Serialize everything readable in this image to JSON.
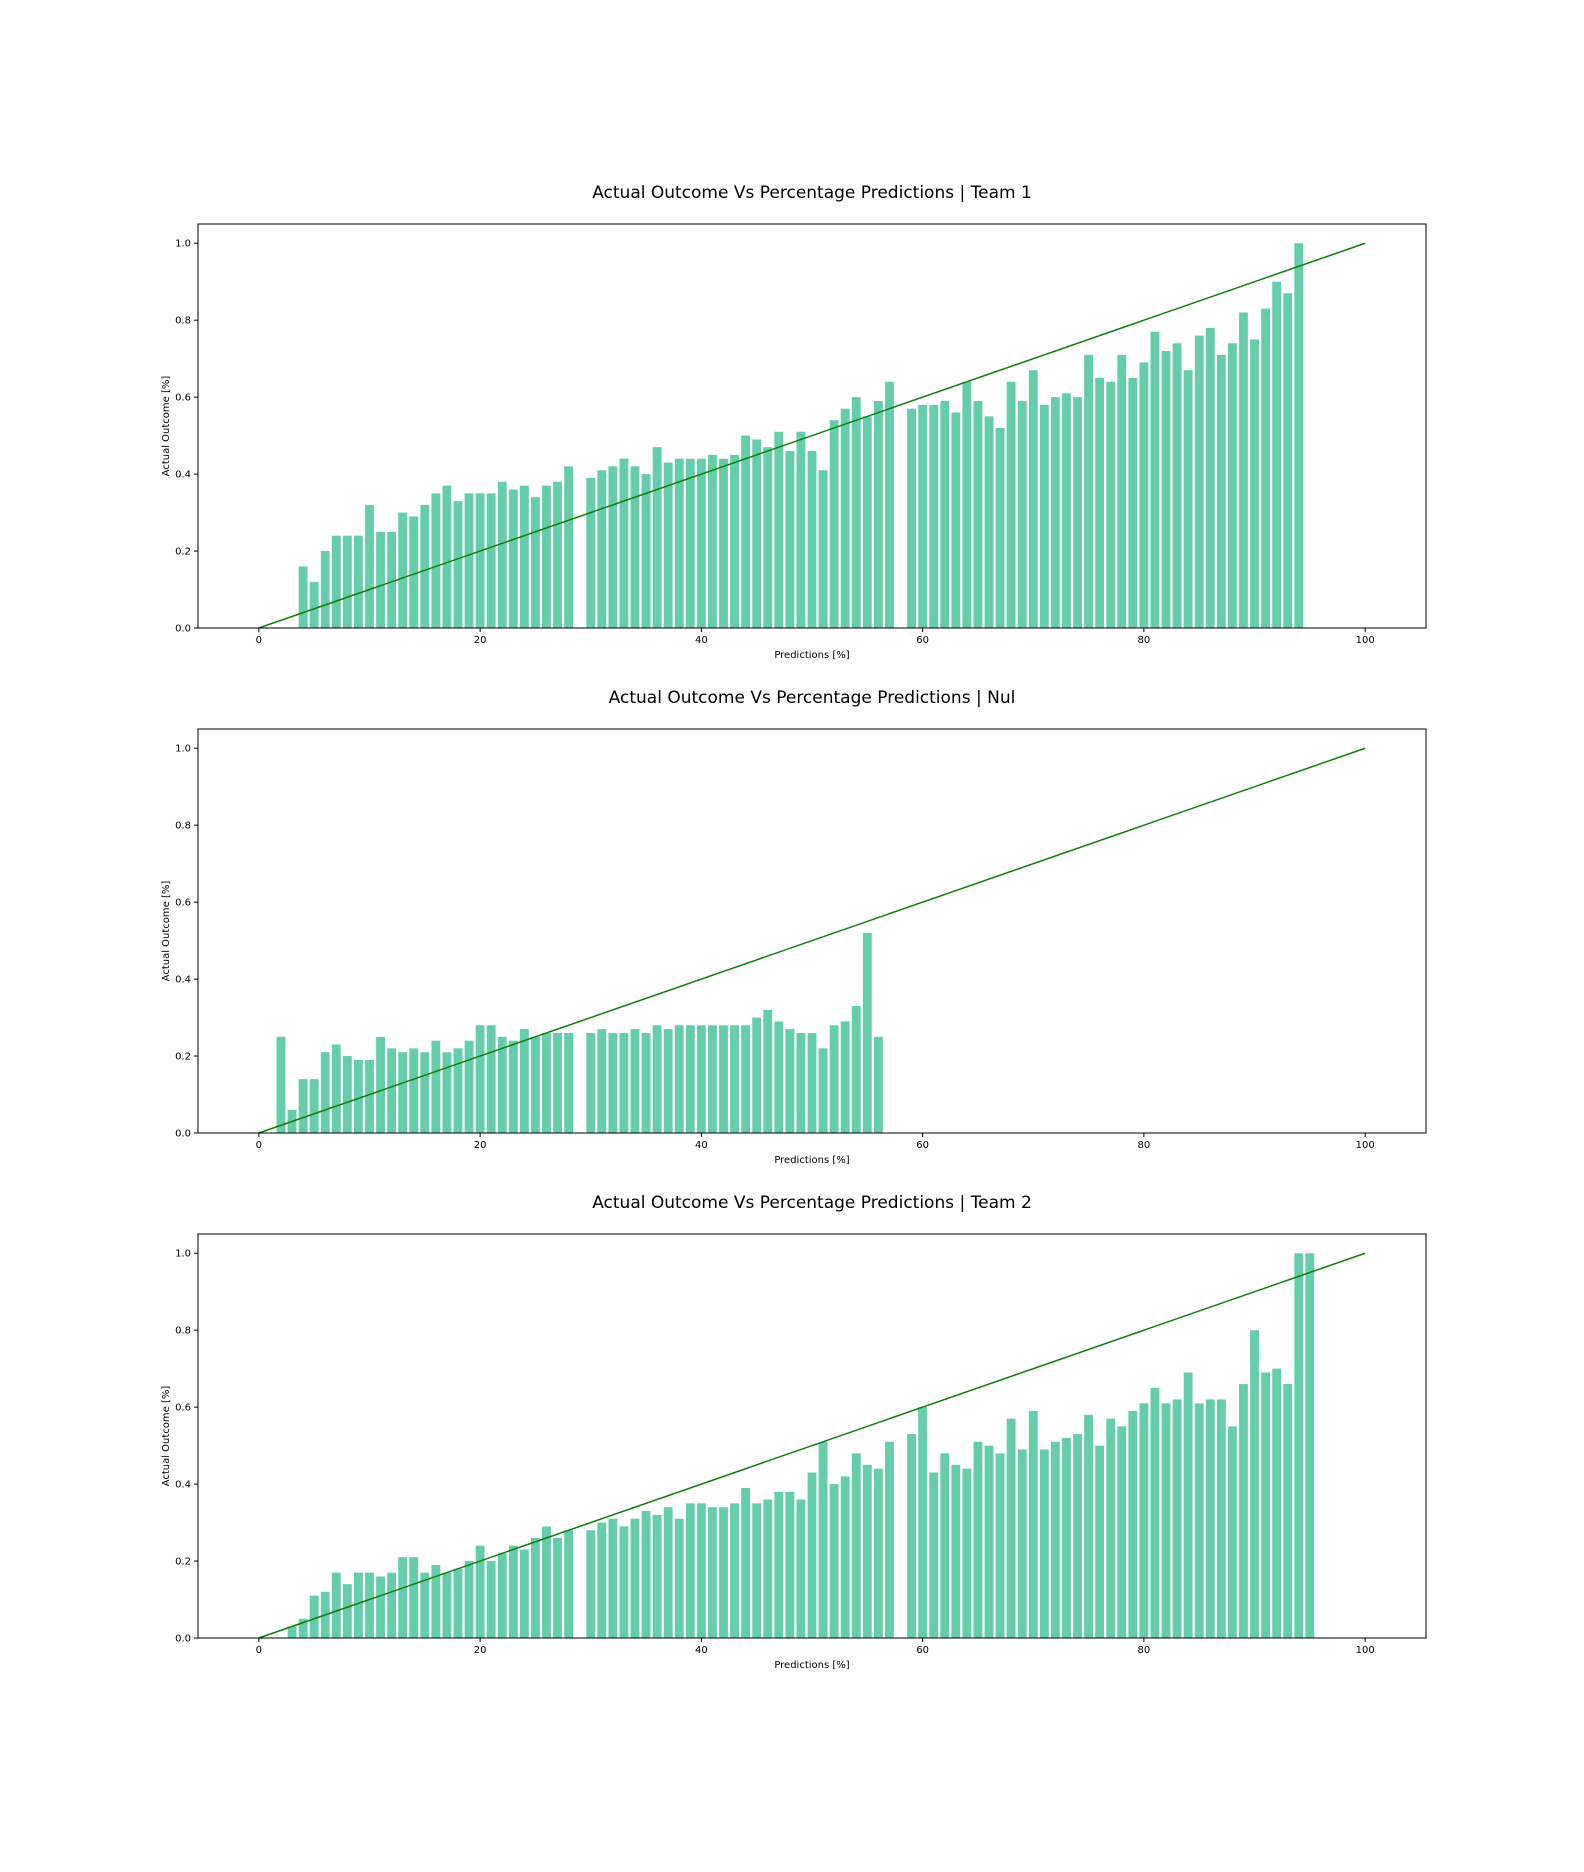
{
  "style": {
    "bar_color": "#66cdaa",
    "line_color": "#008000"
  },
  "chart_data": [
    {
      "type": "bar",
      "title": "Actual Outcome Vs Percentage Predictions | Team 1",
      "xlabel": "Predictions [%]",
      "ylabel": "Actual Outcome [%]",
      "xlim": [
        -5.5,
        105.5
      ],
      "ylim": [
        0,
        1.05
      ],
      "xticks": [
        0,
        20,
        40,
        60,
        80,
        100
      ],
      "yticks": [
        "0.0",
        "0.2",
        "0.4",
        "0.6",
        "0.8",
        "1.0"
      ],
      "grid": false,
      "bar_width": 0.8,
      "x": [
        4,
        5,
        6,
        7,
        8,
        9,
        10,
        11,
        12,
        13,
        14,
        15,
        16,
        17,
        18,
        19,
        20,
        21,
        22,
        23,
        24,
        25,
        26,
        27,
        28,
        30,
        31,
        32,
        33,
        34,
        35,
        36,
        37,
        38,
        39,
        40,
        41,
        42,
        43,
        44,
        45,
        46,
        47,
        48,
        49,
        50,
        51,
        52,
        53,
        54,
        55,
        56,
        57,
        59,
        60,
        61,
        62,
        63,
        64,
        65,
        66,
        67,
        68,
        69,
        70,
        71,
        72,
        73,
        74,
        75,
        76,
        77,
        78,
        79,
        80,
        81,
        82,
        83,
        84,
        85,
        86,
        87,
        88,
        89,
        90,
        91,
        92,
        93,
        94
      ],
      "values": [
        0.16,
        0.12,
        0.2,
        0.24,
        0.24,
        0.24,
        0.32,
        0.25,
        0.25,
        0.3,
        0.29,
        0.32,
        0.35,
        0.37,
        0.33,
        0.35,
        0.35,
        0.35,
        0.38,
        0.36,
        0.37,
        0.34,
        0.37,
        0.38,
        0.42,
        0.39,
        0.41,
        0.42,
        0.44,
        0.42,
        0.4,
        0.47,
        0.43,
        0.44,
        0.44,
        0.44,
        0.45,
        0.44,
        0.45,
        0.5,
        0.49,
        0.47,
        0.51,
        0.46,
        0.51,
        0.46,
        0.41,
        0.54,
        0.57,
        0.6,
        0.55,
        0.59,
        0.64,
        0.57,
        0.58,
        0.58,
        0.59,
        0.56,
        0.64,
        0.59,
        0.55,
        0.52,
        0.64,
        0.59,
        0.67,
        0.58,
        0.6,
        0.61,
        0.6,
        0.71,
        0.65,
        0.64,
        0.71,
        0.65,
        0.69,
        0.77,
        0.72,
        0.74,
        0.67,
        0.76,
        0.78,
        0.71,
        0.74,
        0.82,
        0.75,
        0.83,
        0.9,
        0.87,
        1.0
      ],
      "reference_line": {
        "x": [
          0,
          100
        ],
        "y": [
          0,
          1.0
        ]
      }
    },
    {
      "type": "bar",
      "title": "Actual Outcome Vs Percentage Predictions | Nul",
      "xlabel": "Predictions [%]",
      "ylabel": "Actual Outcome [%]",
      "xlim": [
        -5.5,
        105.5
      ],
      "ylim": [
        0,
        1.05
      ],
      "xticks": [
        0,
        20,
        40,
        60,
        80,
        100
      ],
      "yticks": [
        "0.0",
        "0.2",
        "0.4",
        "0.6",
        "0.8",
        "1.0"
      ],
      "grid": false,
      "bar_width": 0.8,
      "x": [
        2,
        3,
        4,
        5,
        6,
        7,
        8,
        9,
        10,
        11,
        12,
        13,
        14,
        15,
        16,
        17,
        18,
        19,
        20,
        21,
        22,
        23,
        24,
        25,
        26,
        27,
        28,
        30,
        31,
        32,
        33,
        34,
        35,
        36,
        37,
        38,
        39,
        40,
        41,
        42,
        43,
        44,
        45,
        46,
        47,
        48,
        49,
        50,
        51,
        52,
        53,
        54,
        55,
        56
      ],
      "values": [
        0.25,
        0.06,
        0.14,
        0.14,
        0.21,
        0.23,
        0.2,
        0.19,
        0.19,
        0.25,
        0.22,
        0.21,
        0.22,
        0.21,
        0.24,
        0.21,
        0.22,
        0.24,
        0.28,
        0.28,
        0.25,
        0.24,
        0.27,
        0.25,
        0.26,
        0.26,
        0.26,
        0.26,
        0.27,
        0.26,
        0.26,
        0.27,
        0.26,
        0.28,
        0.27,
        0.28,
        0.28,
        0.28,
        0.28,
        0.28,
        0.28,
        0.28,
        0.3,
        0.32,
        0.29,
        0.27,
        0.26,
        0.26,
        0.22,
        0.28,
        0.29,
        0.33,
        0.52,
        0.25
      ],
      "reference_line": {
        "x": [
          0,
          100
        ],
        "y": [
          0,
          1.0
        ]
      }
    },
    {
      "type": "bar",
      "title": "Actual Outcome Vs Percentage Predictions | Team 2",
      "xlabel": "Predictions [%]",
      "ylabel": "Actual Outcome [%]",
      "xlim": [
        -5.5,
        105.5
      ],
      "ylim": [
        0,
        1.05
      ],
      "xticks": [
        0,
        20,
        40,
        60,
        80,
        100
      ],
      "yticks": [
        "0.0",
        "0.2",
        "0.4",
        "0.6",
        "0.8",
        "1.0"
      ],
      "grid": false,
      "bar_width": 0.8,
      "x": [
        3,
        4,
        5,
        6,
        7,
        8,
        9,
        10,
        11,
        12,
        13,
        14,
        15,
        16,
        17,
        18,
        19,
        20,
        21,
        22,
        23,
        24,
        25,
        26,
        27,
        28,
        30,
        31,
        32,
        33,
        34,
        35,
        36,
        37,
        38,
        39,
        40,
        41,
        42,
        43,
        44,
        45,
        46,
        47,
        48,
        49,
        50,
        51,
        52,
        53,
        54,
        55,
        56,
        57,
        59,
        60,
        61,
        62,
        63,
        64,
        65,
        66,
        67,
        68,
        69,
        70,
        71,
        72,
        73,
        74,
        75,
        76,
        77,
        78,
        79,
        80,
        81,
        82,
        83,
        84,
        85,
        86,
        87,
        88,
        89,
        90,
        91,
        92,
        93,
        94,
        95
      ],
      "values": [
        0.03,
        0.05,
        0.11,
        0.12,
        0.17,
        0.14,
        0.17,
        0.17,
        0.16,
        0.17,
        0.21,
        0.21,
        0.17,
        0.19,
        0.17,
        0.18,
        0.2,
        0.24,
        0.2,
        0.22,
        0.24,
        0.23,
        0.26,
        0.29,
        0.26,
        0.28,
        0.28,
        0.3,
        0.31,
        0.29,
        0.31,
        0.33,
        0.32,
        0.34,
        0.31,
        0.35,
        0.35,
        0.34,
        0.34,
        0.35,
        0.39,
        0.35,
        0.36,
        0.38,
        0.38,
        0.36,
        0.43,
        0.51,
        0.4,
        0.42,
        0.48,
        0.45,
        0.44,
        0.51,
        0.53,
        0.6,
        0.43,
        0.48,
        0.45,
        0.44,
        0.51,
        0.5,
        0.48,
        0.57,
        0.49,
        0.59,
        0.49,
        0.51,
        0.52,
        0.53,
        0.58,
        0.5,
        0.57,
        0.55,
        0.59,
        0.61,
        0.65,
        0.61,
        0.62,
        0.69,
        0.61,
        0.62,
        0.62,
        0.55,
        0.66,
        0.8,
        0.69,
        0.7,
        0.66,
        1.0,
        1.0
      ],
      "reference_line": {
        "x": [
          0,
          100
        ],
        "y": [
          0,
          1.0
        ]
      }
    }
  ]
}
